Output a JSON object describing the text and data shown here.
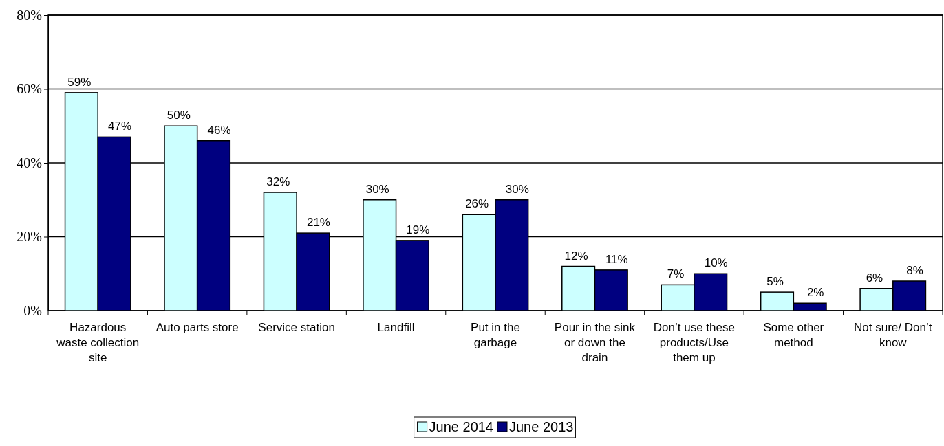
{
  "chart_data": {
    "type": "bar",
    "categories": [
      "Hazardous waste collection site",
      "Auto parts store",
      "Service station",
      "Landfill",
      "Put in the garbage",
      "Pour in the sink or down the drain",
      "Don’t use these products/Use them up",
      "Some other method",
      "Not sure/ Don’t know"
    ],
    "series": [
      {
        "name": "June 2014",
        "color": "#ccffff",
        "values": [
          59,
          50,
          32,
          30,
          26,
          12,
          7,
          5,
          6
        ],
        "value_labels": [
          "59%",
          "50%",
          "32%",
          "30%",
          "26%",
          "12%",
          "7%",
          "5%",
          "6%"
        ]
      },
      {
        "name": "June 2013",
        "color": "#000080",
        "values": [
          47,
          46,
          21,
          19,
          30,
          11,
          10,
          2,
          8
        ],
        "value_labels": [
          "47%",
          "46%",
          "21%",
          "19%",
          "30%",
          "11%",
          "10%",
          "2%",
          "8%"
        ]
      }
    ],
    "ylim": [
      0,
      80
    ],
    "yticks": [
      {
        "value": 0,
        "label": "0%"
      },
      {
        "value": 20,
        "label": "20%"
      },
      {
        "value": 40,
        "label": "40%"
      },
      {
        "value": 60,
        "label": "60%"
      },
      {
        "value": 80,
        "label": "80%"
      }
    ],
    "grid": "y",
    "legend": "bottom"
  }
}
